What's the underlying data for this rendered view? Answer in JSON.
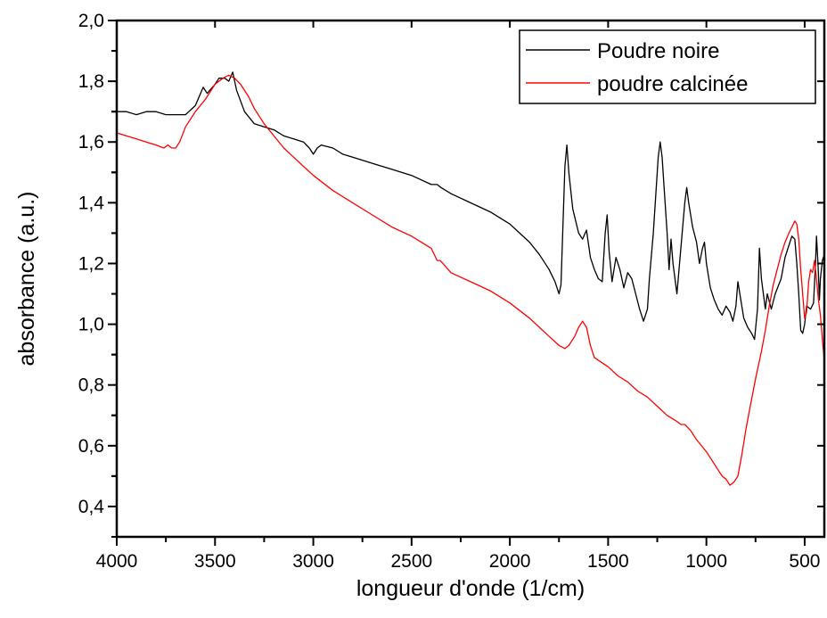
{
  "chart_data": {
    "type": "line",
    "title": "",
    "xlabel": "longueur d'onde (1/cm)",
    "ylabel": "absorbance (a.u.)",
    "xlim": [
      4000,
      400
    ],
    "ylim": [
      0.3,
      2.0
    ],
    "x_reversed": true,
    "x_ticks": [
      {
        "value": 4000,
        "label": "4000"
      },
      {
        "value": 3500,
        "label": "3500"
      },
      {
        "value": 3000,
        "label": "3000"
      },
      {
        "value": 2500,
        "label": "2500"
      },
      {
        "value": 2000,
        "label": "2000"
      },
      {
        "value": 1500,
        "label": "1500"
      },
      {
        "value": 1000,
        "label": "1000"
      },
      {
        "value": 500,
        "label": "500"
      }
    ],
    "y_ticks": [
      {
        "value": 0.4,
        "label": "0,4"
      },
      {
        "value": 0.6,
        "label": "0,6"
      },
      {
        "value": 0.8,
        "label": "0,8"
      },
      {
        "value": 1.0,
        "label": "1,0"
      },
      {
        "value": 1.2,
        "label": "1,2"
      },
      {
        "value": 1.4,
        "label": "1,4"
      },
      {
        "value": 1.6,
        "label": "1,6"
      },
      {
        "value": 1.8,
        "label": "1,8"
      },
      {
        "value": 2.0,
        "label": "2,0"
      }
    ],
    "grid": false,
    "legend_position": "top-right",
    "series": [
      {
        "name": "Poudre noire",
        "color": "#000000",
        "points": [
          [
            4000,
            1.7
          ],
          [
            3950,
            1.7
          ],
          [
            3900,
            1.69
          ],
          [
            3850,
            1.7
          ],
          [
            3800,
            1.7
          ],
          [
            3750,
            1.69
          ],
          [
            3700,
            1.69
          ],
          [
            3650,
            1.69
          ],
          [
            3600,
            1.72
          ],
          [
            3560,
            1.78
          ],
          [
            3540,
            1.76
          ],
          [
            3500,
            1.79
          ],
          [
            3480,
            1.81
          ],
          [
            3450,
            1.81
          ],
          [
            3430,
            1.8
          ],
          [
            3410,
            1.83
          ],
          [
            3390,
            1.77
          ],
          [
            3350,
            1.7
          ],
          [
            3300,
            1.66
          ],
          [
            3250,
            1.65
          ],
          [
            3200,
            1.64
          ],
          [
            3150,
            1.62
          ],
          [
            3100,
            1.61
          ],
          [
            3050,
            1.6
          ],
          [
            3020,
            1.58
          ],
          [
            3000,
            1.56
          ],
          [
            2980,
            1.58
          ],
          [
            2960,
            1.59
          ],
          [
            2900,
            1.58
          ],
          [
            2850,
            1.56
          ],
          [
            2800,
            1.55
          ],
          [
            2700,
            1.53
          ],
          [
            2600,
            1.51
          ],
          [
            2500,
            1.49
          ],
          [
            2400,
            1.46
          ],
          [
            2370,
            1.46
          ],
          [
            2350,
            1.45
          ],
          [
            2300,
            1.43
          ],
          [
            2200,
            1.4
          ],
          [
            2100,
            1.37
          ],
          [
            2000,
            1.33
          ],
          [
            1950,
            1.3
          ],
          [
            1900,
            1.27
          ],
          [
            1850,
            1.23
          ],
          [
            1800,
            1.18
          ],
          [
            1770,
            1.14
          ],
          [
            1750,
            1.1
          ],
          [
            1740,
            1.13
          ],
          [
            1720,
            1.52
          ],
          [
            1710,
            1.59
          ],
          [
            1700,
            1.5
          ],
          [
            1680,
            1.38
          ],
          [
            1650,
            1.3
          ],
          [
            1630,
            1.28
          ],
          [
            1610,
            1.31
          ],
          [
            1590,
            1.22
          ],
          [
            1570,
            1.18
          ],
          [
            1550,
            1.15
          ],
          [
            1530,
            1.14
          ],
          [
            1515,
            1.3
          ],
          [
            1505,
            1.36
          ],
          [
            1495,
            1.24
          ],
          [
            1480,
            1.14
          ],
          [
            1460,
            1.22
          ],
          [
            1440,
            1.18
          ],
          [
            1420,
            1.12
          ],
          [
            1400,
            1.17
          ],
          [
            1380,
            1.15
          ],
          [
            1360,
            1.1
          ],
          [
            1340,
            1.05
          ],
          [
            1320,
            1.01
          ],
          [
            1300,
            1.05
          ],
          [
            1290,
            1.15
          ],
          [
            1270,
            1.3
          ],
          [
            1255,
            1.45
          ],
          [
            1245,
            1.55
          ],
          [
            1235,
            1.6
          ],
          [
            1225,
            1.55
          ],
          [
            1215,
            1.45
          ],
          [
            1200,
            1.3
          ],
          [
            1190,
            1.18
          ],
          [
            1180,
            1.28
          ],
          [
            1170,
            1.2
          ],
          [
            1150,
            1.1
          ],
          [
            1130,
            1.25
          ],
          [
            1110,
            1.4
          ],
          [
            1100,
            1.45
          ],
          [
            1090,
            1.4
          ],
          [
            1070,
            1.32
          ],
          [
            1050,
            1.27
          ],
          [
            1035,
            1.2
          ],
          [
            1020,
            1.25
          ],
          [
            1010,
            1.27
          ],
          [
            1000,
            1.2
          ],
          [
            980,
            1.12
          ],
          [
            960,
            1.08
          ],
          [
            940,
            1.05
          ],
          [
            920,
            1.03
          ],
          [
            900,
            1.06
          ],
          [
            880,
            1.04
          ],
          [
            865,
            1.01
          ],
          [
            850,
            1.06
          ],
          [
            840,
            1.14
          ],
          [
            830,
            1.1
          ],
          [
            810,
            1.02
          ],
          [
            790,
            0.99
          ],
          [
            770,
            0.97
          ],
          [
            755,
            0.95
          ],
          [
            740,
            1.05
          ],
          [
            730,
            1.25
          ],
          [
            720,
            1.15
          ],
          [
            700,
            1.05
          ],
          [
            690,
            1.1
          ],
          [
            670,
            1.05
          ],
          [
            650,
            1.1
          ],
          [
            620,
            1.15
          ],
          [
            600,
            1.22
          ],
          [
            580,
            1.26
          ],
          [
            565,
            1.29
          ],
          [
            550,
            1.28
          ],
          [
            540,
            1.2
          ],
          [
            530,
            1.1
          ],
          [
            520,
            0.98
          ],
          [
            510,
            0.97
          ],
          [
            500,
            1.0
          ],
          [
            490,
            1.06
          ],
          [
            470,
            1.05
          ],
          [
            455,
            1.07
          ],
          [
            445,
            1.2
          ],
          [
            440,
            1.29
          ],
          [
            432,
            1.2
          ],
          [
            425,
            1.08
          ],
          [
            420,
            1.15
          ],
          [
            415,
            1.18
          ],
          [
            410,
            1.21
          ],
          [
            400,
            1.23
          ]
        ]
      },
      {
        "name": "poudre calcinée",
        "color": "#ff0000",
        "points": [
          [
            4000,
            1.63
          ],
          [
            3950,
            1.62
          ],
          [
            3900,
            1.61
          ],
          [
            3850,
            1.6
          ],
          [
            3800,
            1.59
          ],
          [
            3760,
            1.58
          ],
          [
            3740,
            1.59
          ],
          [
            3720,
            1.58
          ],
          [
            3700,
            1.58
          ],
          [
            3680,
            1.6
          ],
          [
            3650,
            1.65
          ],
          [
            3600,
            1.7
          ],
          [
            3550,
            1.74
          ],
          [
            3500,
            1.79
          ],
          [
            3460,
            1.81
          ],
          [
            3430,
            1.82
          ],
          [
            3400,
            1.81
          ],
          [
            3370,
            1.79
          ],
          [
            3330,
            1.75
          ],
          [
            3300,
            1.71
          ],
          [
            3250,
            1.66
          ],
          [
            3200,
            1.62
          ],
          [
            3150,
            1.58
          ],
          [
            3100,
            1.55
          ],
          [
            3050,
            1.52
          ],
          [
            3000,
            1.49
          ],
          [
            2900,
            1.44
          ],
          [
            2800,
            1.4
          ],
          [
            2700,
            1.36
          ],
          [
            2600,
            1.32
          ],
          [
            2500,
            1.29
          ],
          [
            2400,
            1.25
          ],
          [
            2370,
            1.21
          ],
          [
            2355,
            1.21
          ],
          [
            2340,
            1.2
          ],
          [
            2300,
            1.17
          ],
          [
            2200,
            1.14
          ],
          [
            2100,
            1.11
          ],
          [
            2000,
            1.07
          ],
          [
            1900,
            1.02
          ],
          [
            1850,
            0.99
          ],
          [
            1800,
            0.96
          ],
          [
            1750,
            0.93
          ],
          [
            1720,
            0.92
          ],
          [
            1700,
            0.93
          ],
          [
            1670,
            0.96
          ],
          [
            1650,
            0.99
          ],
          [
            1630,
            1.01
          ],
          [
            1610,
            0.99
          ],
          [
            1590,
            0.93
          ],
          [
            1570,
            0.89
          ],
          [
            1500,
            0.86
          ],
          [
            1450,
            0.83
          ],
          [
            1400,
            0.81
          ],
          [
            1350,
            0.78
          ],
          [
            1300,
            0.76
          ],
          [
            1250,
            0.73
          ],
          [
            1200,
            0.7
          ],
          [
            1150,
            0.68
          ],
          [
            1130,
            0.67
          ],
          [
            1110,
            0.67
          ],
          [
            1080,
            0.65
          ],
          [
            1050,
            0.62
          ],
          [
            1000,
            0.58
          ],
          [
            950,
            0.53
          ],
          [
            920,
            0.5
          ],
          [
            900,
            0.49
          ],
          [
            880,
            0.47
          ],
          [
            860,
            0.48
          ],
          [
            840,
            0.5
          ],
          [
            820,
            0.57
          ],
          [
            800,
            0.65
          ],
          [
            780,
            0.72
          ],
          [
            750,
            0.82
          ],
          [
            720,
            0.91
          ],
          [
            700,
            0.98
          ],
          [
            680,
            1.06
          ],
          [
            660,
            1.13
          ],
          [
            640,
            1.18
          ],
          [
            620,
            1.23
          ],
          [
            600,
            1.27
          ],
          [
            580,
            1.3
          ],
          [
            565,
            1.32
          ],
          [
            550,
            1.34
          ],
          [
            540,
            1.33
          ],
          [
            530,
            1.28
          ],
          [
            520,
            1.18
          ],
          [
            510,
            1.1
          ],
          [
            500,
            1.02
          ],
          [
            490,
            1.04
          ],
          [
            480,
            1.14
          ],
          [
            470,
            1.18
          ],
          [
            460,
            1.17
          ],
          [
            450,
            1.21
          ],
          [
            440,
            1.15
          ],
          [
            430,
            1.08
          ],
          [
            420,
            1.03
          ],
          [
            410,
            0.95
          ],
          [
            400,
            0.88
          ]
        ]
      }
    ]
  }
}
